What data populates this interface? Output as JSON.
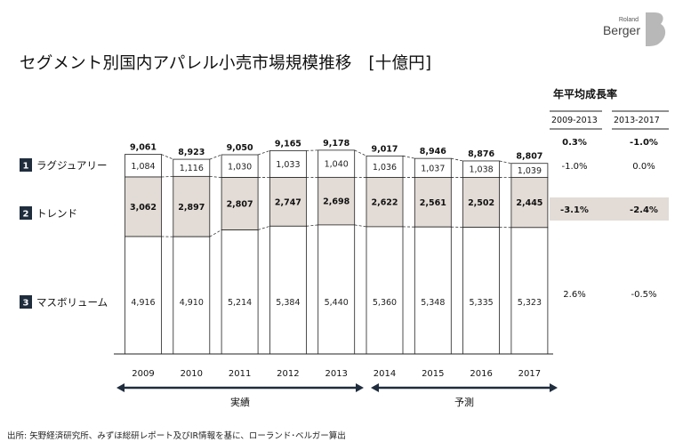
{
  "logo": {
    "line1": "Roland",
    "line2": "Berger"
  },
  "title": "セグメント別国内アパレル小売市場規模推移　[十億円]",
  "growth_header": {
    "title": "年平均成長率",
    "col1": "2009-2013",
    "col2": "2013-2017"
  },
  "period_labels": {
    "actual": "実績",
    "forecast": "予測"
  },
  "source": "出所: 矢野経済研究所、みずほ総研レポート及びIR情報を基に、ローランド･ベルガー算出",
  "colors": {
    "dark": "#1f2d3d",
    "trend_fill": "#e3dcd6",
    "arrow": "#1f2d3d",
    "highlight": "#e3dcd6"
  },
  "chart_data": {
    "type": "bar",
    "stacked": true,
    "categories": [
      "2009",
      "2010",
      "2011",
      "2012",
      "2013",
      "2014",
      "2015",
      "2016",
      "2017"
    ],
    "series": [
      {
        "number": "1",
        "name": "ラグジュアリー",
        "values": [
          1084,
          1116,
          1030,
          1033,
          1040,
          1036,
          1037,
          1038,
          1039
        ],
        "labels": [
          "1,084",
          "1,116",
          "1,030",
          "1,033",
          "1,040",
          "1,036",
          "1,037",
          "1,038",
          "1,039"
        ],
        "growth": [
          "-1.0%",
          "0.0%"
        ]
      },
      {
        "number": "2",
        "name": "トレンド",
        "values": [
          3062,
          2897,
          2807,
          2747,
          2698,
          2622,
          2561,
          2502,
          2445
        ],
        "labels": [
          "3,062",
          "2,897",
          "2,807",
          "2,747",
          "2,698",
          "2,622",
          "2,561",
          "2,502",
          "2,445"
        ],
        "growth": [
          "-3.1%",
          "-2.4%"
        ]
      },
      {
        "number": "3",
        "name": "マスボリューム",
        "values": [
          4916,
          4910,
          5214,
          5384,
          5440,
          5360,
          5348,
          5335,
          5323
        ],
        "labels": [
          "4,916",
          "4,910",
          "5,214",
          "5,384",
          "5,440",
          "5,360",
          "5,348",
          "5,335",
          "5,323"
        ],
        "growth": [
          "2.6%",
          "-0.5%"
        ]
      }
    ],
    "totals": [
      9061,
      8923,
      9050,
      9165,
      9178,
      9017,
      8946,
      8876,
      8807
    ],
    "total_labels": [
      "9,061",
      "8,923",
      "9,050",
      "9,165",
      "9,178",
      "9,017",
      "8,946",
      "8,876",
      "8,807"
    ],
    "total_growth": [
      "0.3%",
      "-1.0%"
    ],
    "actual_years": [
      "2009",
      "2010",
      "2011",
      "2012",
      "2013"
    ],
    "forecast_years": [
      "2014",
      "2015",
      "2016",
      "2017"
    ]
  }
}
